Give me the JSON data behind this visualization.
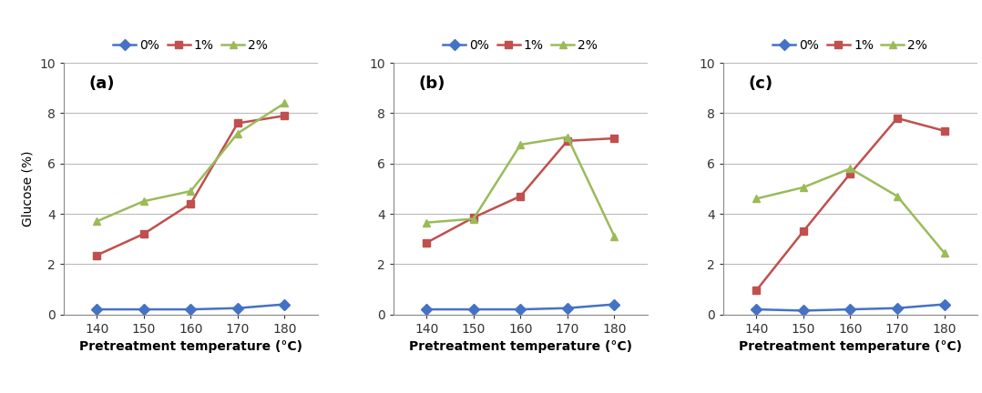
{
  "x": [
    140,
    150,
    160,
    170,
    180
  ],
  "panels": [
    {
      "label": "(a)",
      "series": {
        "0%": [
          0.2,
          0.2,
          0.2,
          0.25,
          0.4
        ],
        "1%": [
          2.35,
          3.2,
          4.4,
          7.6,
          7.9
        ],
        "2%": [
          3.7,
          4.5,
          4.9,
          7.2,
          8.4
        ]
      }
    },
    {
      "label": "(b)",
      "series": {
        "0%": [
          0.2,
          0.2,
          0.2,
          0.25,
          0.4
        ],
        "1%": [
          2.85,
          3.85,
          4.7,
          6.9,
          7.0
        ],
        "2%": [
          3.65,
          3.8,
          6.75,
          7.05,
          3.1
        ]
      }
    },
    {
      "label": "(c)",
      "series": {
        "0%": [
          0.2,
          0.15,
          0.2,
          0.25,
          0.4
        ],
        "1%": [
          0.95,
          3.3,
          5.6,
          7.8,
          7.3
        ],
        "2%": [
          4.6,
          5.05,
          5.8,
          4.7,
          2.45
        ]
      }
    }
  ],
  "colors": {
    "0%": "#4472C4",
    "1%": "#C0504D",
    "2%": "#9BBB59"
  },
  "markers": {
    "0%": "D",
    "1%": "s",
    "2%": "^"
  },
  "ylim": [
    0,
    10
  ],
  "yticks": [
    0,
    2,
    4,
    6,
    8,
    10
  ],
  "xlabel": "Pretreatment temperature (°C)",
  "ylabel": "Glucose (%)",
  "legend_labels": [
    "0%",
    "1%",
    "2%"
  ],
  "background_color": "#ffffff",
  "grid_color": "#bbbbbb",
  "label_fontsize": 13,
  "tick_fontsize": 10,
  "axis_label_fontsize": 10,
  "legend_fontsize": 10,
  "marker_size": 6,
  "line_width": 1.8
}
